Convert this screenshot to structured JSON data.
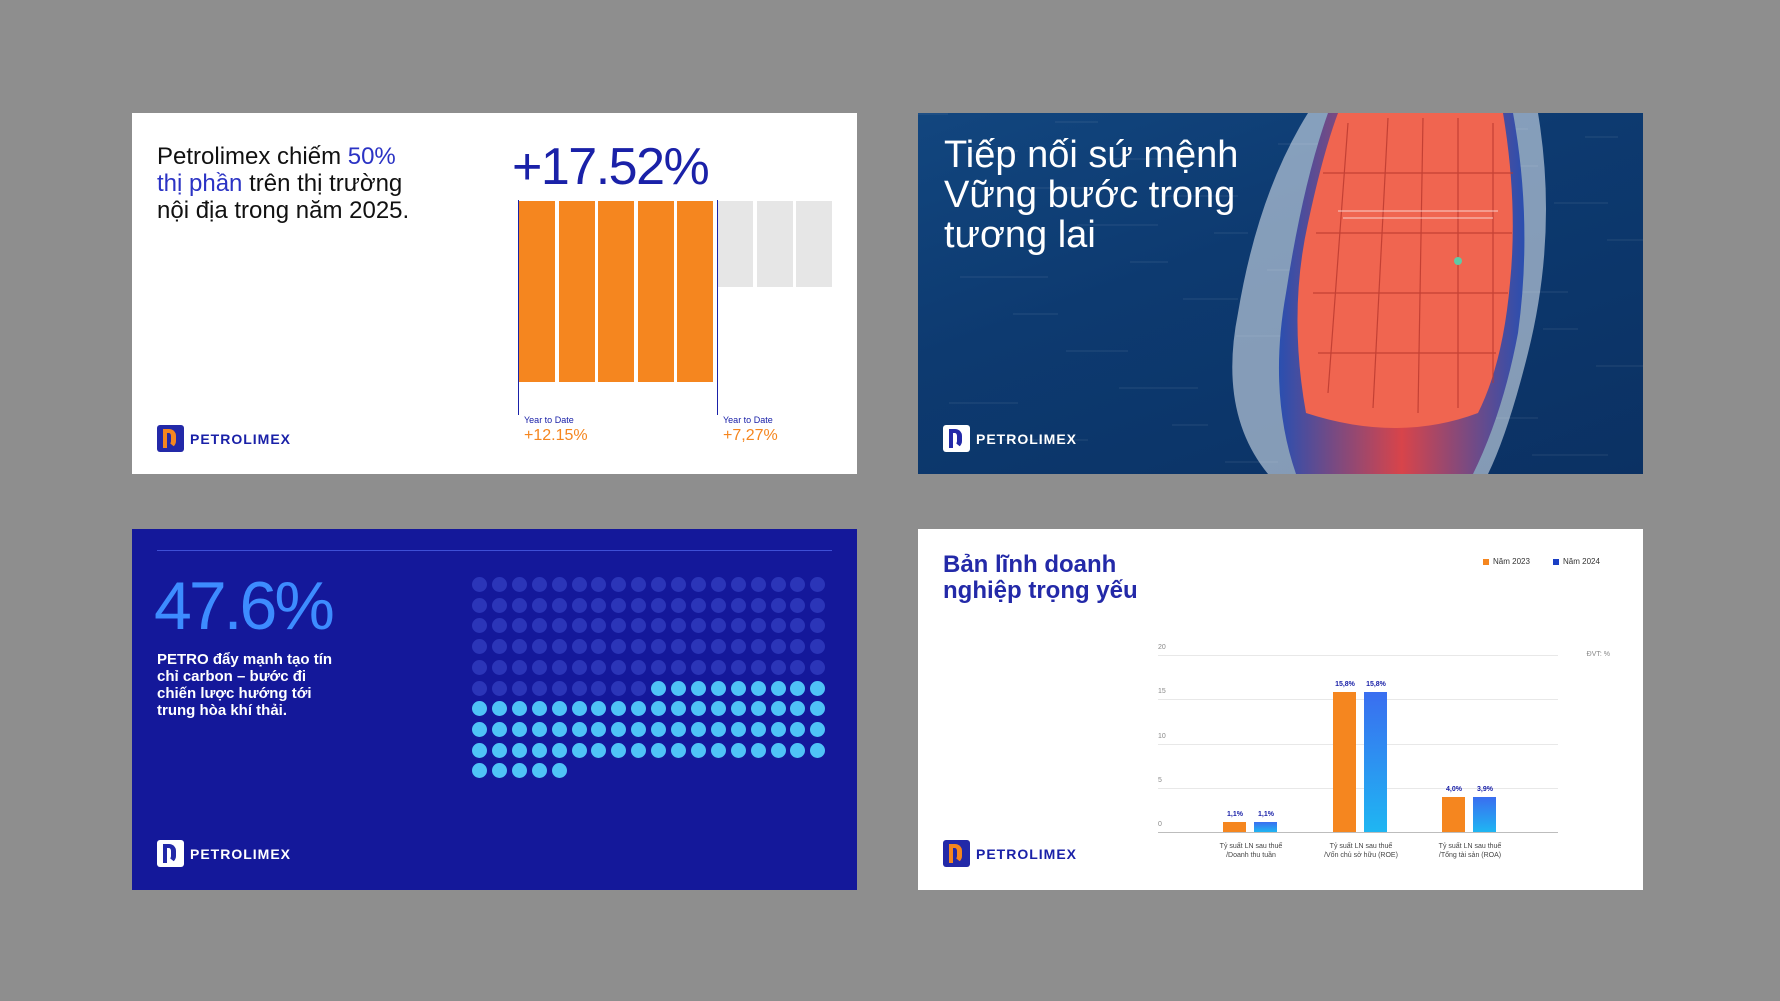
{
  "brand": {
    "name": "PETROLIMEX"
  },
  "card1": {
    "headline_part1": "Petrolimex chiếm ",
    "headline_highlight": "50% thị phần",
    "headline_part2": " trên thị trường nội địa trong năm 2025.",
    "big_stat": "+17.52%",
    "ytd_label_1": "Year to Date",
    "ytd_value_1": "+12.15%",
    "ytd_label_2": "Year to Date",
    "ytd_value_2": "+7,27%",
    "bars": {
      "filled_count": 5,
      "empty_count": 3
    }
  },
  "card2": {
    "title": "Tiếp nối sứ mệnh Vững bước trong tương lai"
  },
  "card3": {
    "big_stat": "47.6%",
    "text": "PETRO đẩy mạnh tạo tín chỉ carbon – bước đi chiến lược hướng tới trung hòa khí thải.",
    "dots": {
      "columns": 18,
      "total": 167,
      "dark_count": 99
    }
  },
  "card4": {
    "title": "Bản lĩnh doanh nghiệp trọng yếu",
    "unit_label": "ĐVT: %",
    "chart_data": {
      "type": "bar",
      "categories": [
        "Tỷ suất LN sau thuế /Doanh thu tuần",
        "Tỷ suất LN sau thuế /Vốn chủ sở hữu (ROE)",
        "Tỷ suất LN sau thuế /Tổng tài sản (ROA)"
      ],
      "category_lines": [
        [
          "Tỷ suất LN sau thuế",
          "/Doanh thu tuần"
        ],
        [
          "Tỷ suất LN sau thuế",
          "/Vốn chủ sở hữu (ROE)"
        ],
        [
          "Tỷ suất LN sau thuế",
          "/Tổng tài sản (ROA)"
        ]
      ],
      "series": [
        {
          "name": "Năm 2023",
          "values": [
            1.1,
            15.8,
            4.0
          ],
          "labels": [
            "1,1%",
            "15,8%",
            "4,0%"
          ],
          "color": "#f5861f"
        },
        {
          "name": "Năm 2024",
          "values": [
            1.1,
            15.8,
            3.9
          ],
          "labels": [
            "1,1%",
            "15,8%",
            "3,9%"
          ],
          "color": "#2f6bea"
        }
      ],
      "ylim": [
        0,
        20
      ],
      "yticks": [
        "20",
        "15",
        "10",
        "5",
        "0"
      ],
      "legend_position": "top-right",
      "grid": true
    }
  },
  "colors": {
    "orange": "#f5861f",
    "navy": "#1a21a8",
    "blue_bg": "#14189a",
    "light_gray_bar": "#e6e6e6",
    "dot_dark": "#2b35b8",
    "dot_light": "#4fc3f7"
  }
}
